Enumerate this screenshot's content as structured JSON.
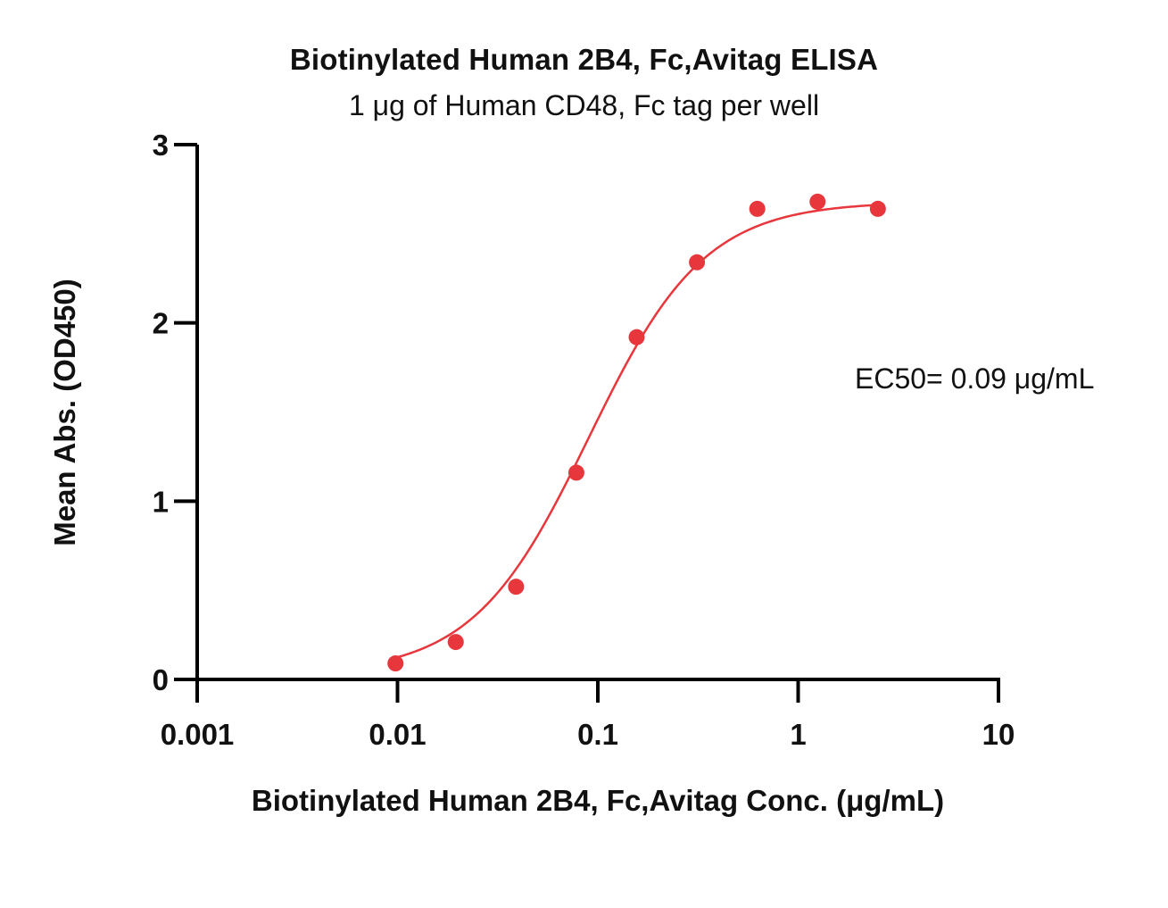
{
  "chart_data": {
    "type": "scatter",
    "title": "Biotinylated Human 2B4, Fc,Avitag ELISA",
    "subtitle": "1 μg of Human CD48, Fc tag per well",
    "xlabel": "Biotinylated Human 2B4, Fc,Avitag Conc. (μg/mL)",
    "ylabel": "Mean Abs. (OD450)",
    "x_scale": "log",
    "xlim": [
      0.001,
      10
    ],
    "ylim": [
      0,
      3
    ],
    "x_ticks": [
      0.001,
      0.01,
      0.1,
      1,
      10
    ],
    "x_tick_labels": [
      "0.001",
      "0.01",
      "0.1",
      "1",
      "10"
    ],
    "y_ticks": [
      0,
      1,
      2,
      3
    ],
    "y_tick_labels": [
      "0",
      "1",
      "2",
      "3"
    ],
    "grid": false,
    "legend": "none",
    "annotation": "EC50= 0.09 μg/mL",
    "color": "#e8373c",
    "series": [
      {
        "x": [
          0.00977,
          0.01953,
          0.03906,
          0.07813,
          0.15625,
          0.3125,
          0.625,
          1.25,
          2.5
        ],
        "y": [
          0.09,
          0.21,
          0.52,
          1.16,
          1.92,
          2.34,
          2.64,
          2.68,
          2.64
        ]
      }
    ],
    "fit": {
      "model": "4PL",
      "bottom": 0.03,
      "top": 2.68,
      "ec50": 0.09,
      "hill": 1.5
    }
  }
}
